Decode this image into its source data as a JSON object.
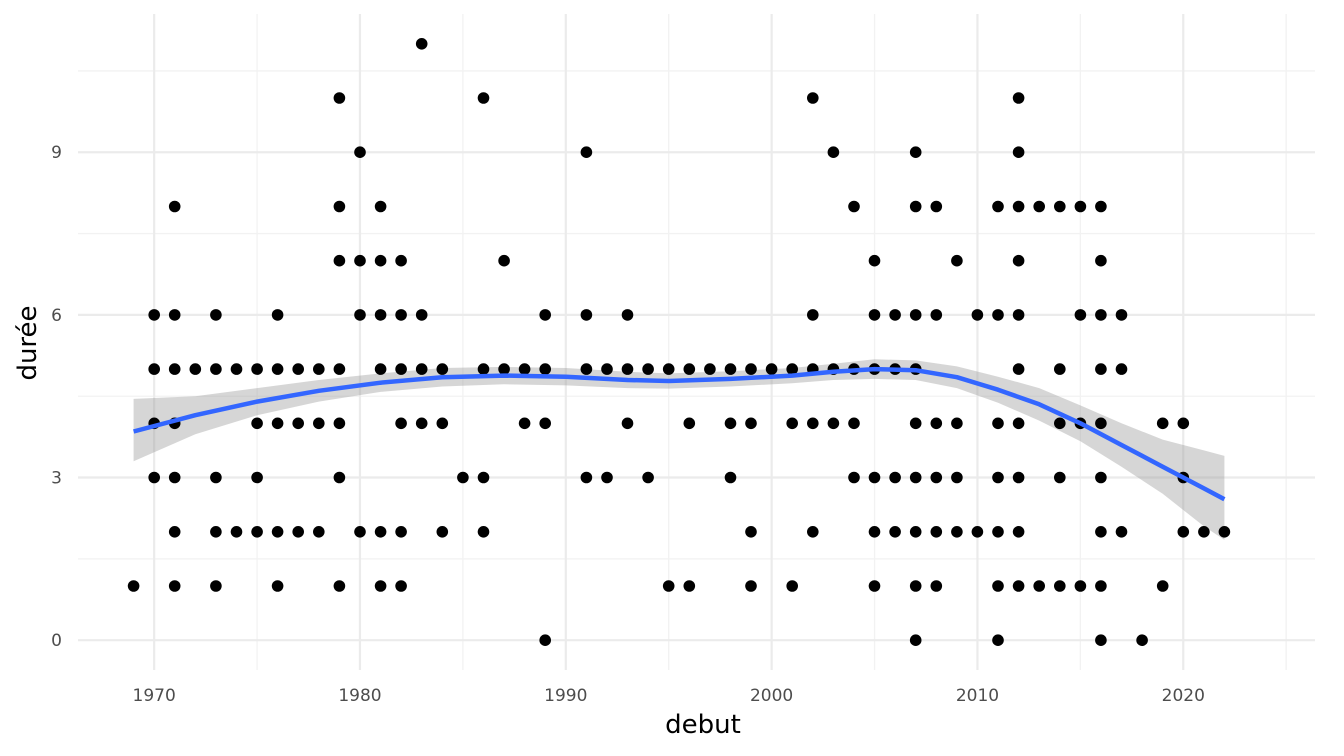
{
  "chart_data": {
    "type": "scatter",
    "xlabel": "debut",
    "ylabel": "durée",
    "xlim": [
      1966.3,
      2026.4
    ],
    "ylim": [
      -0.55,
      11.55
    ],
    "x_ticks": [
      1970,
      1980,
      1990,
      2000,
      2010,
      2020
    ],
    "x_tick_labels": [
      "1970",
      "1980",
      "1990",
      "2000",
      "2010",
      "2020"
    ],
    "y_ticks": [
      0,
      3,
      6,
      9
    ],
    "y_tick_labels": [
      "0",
      "3",
      "6",
      "9"
    ],
    "grid": true,
    "legend": "none",
    "colors": {
      "points": "#000000",
      "smooth_line": "#3366FF",
      "ribbon": "#999999",
      "grid_major": "#ebebeb",
      "grid_minor": "#f2f2f2"
    },
    "points": [
      [
        1969,
        1
      ],
      [
        1970,
        6
      ],
      [
        1970,
        5
      ],
      [
        1970,
        4
      ],
      [
        1970,
        3
      ],
      [
        1971,
        8
      ],
      [
        1971,
        6
      ],
      [
        1971,
        5
      ],
      [
        1971,
        4
      ],
      [
        1971,
        3
      ],
      [
        1971,
        2
      ],
      [
        1971,
        1
      ],
      [
        1972,
        5
      ],
      [
        1973,
        6
      ],
      [
        1973,
        5
      ],
      [
        1973,
        3
      ],
      [
        1973,
        2
      ],
      [
        1973,
        1
      ],
      [
        1974,
        5
      ],
      [
        1974,
        2
      ],
      [
        1975,
        5
      ],
      [
        1975,
        4
      ],
      [
        1975,
        3
      ],
      [
        1975,
        2
      ],
      [
        1976,
        6
      ],
      [
        1976,
        5
      ],
      [
        1976,
        4
      ],
      [
        1976,
        2
      ],
      [
        1976,
        1
      ],
      [
        1977,
        5
      ],
      [
        1977,
        4
      ],
      [
        1977,
        2
      ],
      [
        1978,
        5
      ],
      [
        1978,
        4
      ],
      [
        1978,
        2
      ],
      [
        1979,
        10
      ],
      [
        1979,
        8
      ],
      [
        1979,
        7
      ],
      [
        1979,
        5
      ],
      [
        1979,
        4
      ],
      [
        1979,
        3
      ],
      [
        1979,
        1
      ],
      [
        1980,
        9
      ],
      [
        1980,
        7
      ],
      [
        1980,
        6
      ],
      [
        1980,
        2
      ],
      [
        1981,
        8
      ],
      [
        1981,
        7
      ],
      [
        1981,
        6
      ],
      [
        1981,
        5
      ],
      [
        1981,
        2
      ],
      [
        1981,
        1
      ],
      [
        1982,
        7
      ],
      [
        1982,
        6
      ],
      [
        1982,
        5
      ],
      [
        1982,
        4
      ],
      [
        1982,
        2
      ],
      [
        1982,
        1
      ],
      [
        1983,
        11
      ],
      [
        1983,
        6
      ],
      [
        1983,
        5
      ],
      [
        1983,
        4
      ],
      [
        1984,
        5
      ],
      [
        1984,
        4
      ],
      [
        1984,
        2
      ],
      [
        1985,
        3
      ],
      [
        1986,
        10
      ],
      [
        1986,
        5
      ],
      [
        1986,
        3
      ],
      [
        1986,
        2
      ],
      [
        1987,
        7
      ],
      [
        1987,
        5
      ],
      [
        1988,
        5
      ],
      [
        1988,
        4
      ],
      [
        1989,
        6
      ],
      [
        1989,
        5
      ],
      [
        1989,
        4
      ],
      [
        1989,
        0
      ],
      [
        1991,
        9
      ],
      [
        1991,
        6
      ],
      [
        1991,
        5
      ],
      [
        1991,
        3
      ],
      [
        1992,
        5
      ],
      [
        1992,
        3
      ],
      [
        1993,
        6
      ],
      [
        1993,
        5
      ],
      [
        1993,
        4
      ],
      [
        1994,
        5
      ],
      [
        1994,
        3
      ],
      [
        1995,
        5
      ],
      [
        1995,
        1
      ],
      [
        1996,
        5
      ],
      [
        1996,
        4
      ],
      [
        1996,
        1
      ],
      [
        1997,
        5
      ],
      [
        1998,
        5
      ],
      [
        1998,
        4
      ],
      [
        1998,
        3
      ],
      [
        1999,
        5
      ],
      [
        1999,
        4
      ],
      [
        1999,
        2
      ],
      [
        1999,
        1
      ],
      [
        2000,
        5
      ],
      [
        2001,
        5
      ],
      [
        2001,
        4
      ],
      [
        2001,
        1
      ],
      [
        2002,
        10
      ],
      [
        2002,
        6
      ],
      [
        2002,
        5
      ],
      [
        2002,
        4
      ],
      [
        2002,
        2
      ],
      [
        2003,
        9
      ],
      [
        2003,
        5
      ],
      [
        2003,
        4
      ],
      [
        2004,
        8
      ],
      [
        2004,
        5
      ],
      [
        2004,
        4
      ],
      [
        2004,
        3
      ],
      [
        2005,
        7
      ],
      [
        2005,
        6
      ],
      [
        2005,
        5
      ],
      [
        2005,
        3
      ],
      [
        2005,
        2
      ],
      [
        2005,
        1
      ],
      [
        2006,
        6
      ],
      [
        2006,
        5
      ],
      [
        2006,
        3
      ],
      [
        2006,
        2
      ],
      [
        2007,
        9
      ],
      [
        2007,
        8
      ],
      [
        2007,
        6
      ],
      [
        2007,
        5
      ],
      [
        2007,
        4
      ],
      [
        2007,
        3
      ],
      [
        2007,
        2
      ],
      [
        2007,
        1
      ],
      [
        2007,
        0
      ],
      [
        2008,
        8
      ],
      [
        2008,
        6
      ],
      [
        2008,
        4
      ],
      [
        2008,
        3
      ],
      [
        2008,
        2
      ],
      [
        2008,
        1
      ],
      [
        2009,
        7
      ],
      [
        2009,
        4
      ],
      [
        2009,
        3
      ],
      [
        2009,
        2
      ],
      [
        2010,
        6
      ],
      [
        2010,
        2
      ],
      [
        2011,
        8
      ],
      [
        2011,
        6
      ],
      [
        2011,
        4
      ],
      [
        2011,
        3
      ],
      [
        2011,
        2
      ],
      [
        2011,
        1
      ],
      [
        2011,
        0
      ],
      [
        2012,
        10
      ],
      [
        2012,
        9
      ],
      [
        2012,
        8
      ],
      [
        2012,
        7
      ],
      [
        2012,
        6
      ],
      [
        2012,
        5
      ],
      [
        2012,
        4
      ],
      [
        2012,
        3
      ],
      [
        2012,
        2
      ],
      [
        2012,
        1
      ],
      [
        2013,
        8
      ],
      [
        2013,
        1
      ],
      [
        2014,
        8
      ],
      [
        2014,
        5
      ],
      [
        2014,
        4
      ],
      [
        2014,
        3
      ],
      [
        2014,
        1
      ],
      [
        2015,
        8
      ],
      [
        2015,
        6
      ],
      [
        2015,
        4
      ],
      [
        2015,
        1
      ],
      [
        2016,
        8
      ],
      [
        2016,
        7
      ],
      [
        2016,
        6
      ],
      [
        2016,
        5
      ],
      [
        2016,
        4
      ],
      [
        2016,
        3
      ],
      [
        2016,
        2
      ],
      [
        2016,
        1
      ],
      [
        2016,
        0
      ],
      [
        2017,
        6
      ],
      [
        2017,
        5
      ],
      [
        2017,
        2
      ],
      [
        2018,
        0
      ],
      [
        2019,
        4
      ],
      [
        2019,
        1
      ],
      [
        2020,
        4
      ],
      [
        2020,
        3
      ],
      [
        2020,
        2
      ],
      [
        2021,
        2
      ],
      [
        2022,
        2
      ]
    ],
    "smooth": {
      "method": "loess",
      "x": [
        1969,
        1972,
        1975,
        1978,
        1981,
        1984,
        1987,
        1990,
        1993,
        1995,
        1998,
        2001,
        2003,
        2005,
        2007,
        2009,
        2011,
        2013,
        2015,
        2017,
        2019,
        2021,
        2022
      ],
      "y": [
        3.85,
        4.15,
        4.4,
        4.6,
        4.75,
        4.85,
        4.88,
        4.86,
        4.8,
        4.78,
        4.82,
        4.88,
        4.95,
        5.0,
        4.98,
        4.85,
        4.62,
        4.35,
        4.0,
        3.6,
        3.2,
        2.8,
        2.6
      ],
      "ymin": [
        3.3,
        3.8,
        4.15,
        4.4,
        4.58,
        4.68,
        4.72,
        4.7,
        4.65,
        4.64,
        4.68,
        4.74,
        4.8,
        4.82,
        4.8,
        4.65,
        4.38,
        4.05,
        3.67,
        3.2,
        2.7,
        2.1,
        1.85
      ],
      "ymax": [
        4.45,
        4.5,
        4.65,
        4.8,
        4.92,
        5.02,
        5.04,
        5.02,
        4.95,
        4.92,
        4.96,
        5.02,
        5.1,
        5.18,
        5.16,
        5.05,
        4.86,
        4.65,
        4.33,
        4.0,
        3.7,
        3.5,
        3.4
      ]
    }
  }
}
